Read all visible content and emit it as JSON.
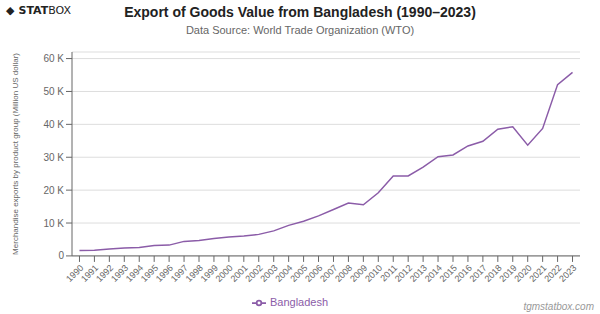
{
  "chart_data": {
    "type": "line",
    "title": "Export of Goods Value from Bangladesh (1990–2023)",
    "subtitle": "Data Source: World Trade Organization (WTO)",
    "ylabel": "Merchandise exports by product group (Million US dollar)",
    "logo": [
      "◆",
      "STAT",
      "BOX"
    ],
    "watermark": "tgmstatbox.com",
    "x": [
      1990,
      1991,
      1992,
      1993,
      1994,
      1995,
      1996,
      1997,
      1998,
      1999,
      2000,
      2001,
      2002,
      2003,
      2004,
      2005,
      2006,
      2007,
      2008,
      2009,
      2010,
      2011,
      2012,
      2013,
      2014,
      2015,
      2016,
      2017,
      2018,
      2019,
      2020,
      2021,
      2022,
      2023
    ],
    "series": [
      {
        "name": "Bangladesh",
        "color": "#8b5ca8",
        "values": [
          1671,
          1718,
          2096,
          2383,
          2534,
          3173,
          3282,
          4418,
          4654,
          5312,
          5763,
          6068,
          6548,
          7603,
          9285,
          10526,
          12177,
          14110,
          16099,
          15565,
          19209,
          24289,
          24302,
          27027,
          30186,
          30697,
          33441,
          34835,
          38524,
          39249,
          33674,
          38759,
          52082,
          55788
        ]
      }
    ],
    "xlim": [
      1989.5,
      2023.5
    ],
    "xticks": [
      1990,
      1991,
      1992,
      1993,
      1994,
      1995,
      1996,
      1997,
      1998,
      1999,
      2000,
      2001,
      2002,
      2003,
      2004,
      2005,
      2006,
      2007,
      2008,
      2009,
      2010,
      2011,
      2012,
      2013,
      2014,
      2015,
      2016,
      2017,
      2018,
      2019,
      2020,
      2021,
      2022,
      2023
    ],
    "ylim": [
      0,
      62000
    ],
    "yticks": [
      0,
      {
        "value": 10000,
        "label": "10 K"
      },
      {
        "value": 20000,
        "label": "20 K"
      },
      {
        "value": 30000,
        "label": "30 K"
      },
      {
        "value": 40000,
        "label": "40 K"
      },
      {
        "value": 50000,
        "label": "50 K"
      },
      {
        "value": 60000,
        "label": "60 K"
      }
    ],
    "grid": "y",
    "legend": "bottom"
  }
}
